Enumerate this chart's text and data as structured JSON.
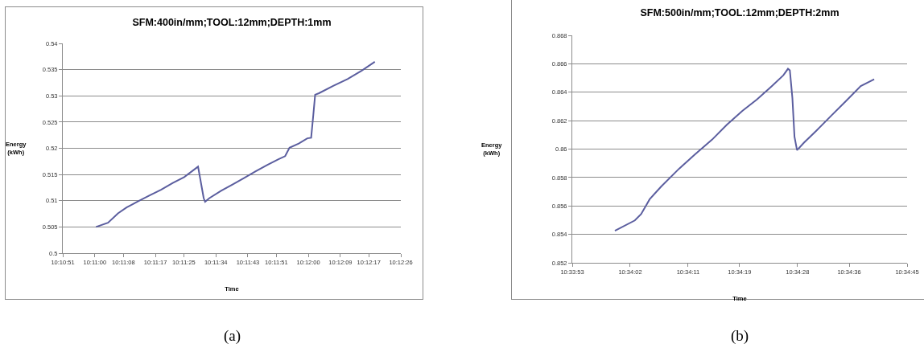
{
  "chart_data": [
    {
      "type": "line",
      "title": "SFM:400in/mm;TOOL:12mm;DEPTH:1mm",
      "xlabel": "Time",
      "ylabel": "Energy\n(kWh)",
      "annotations": [
        "(a)"
      ],
      "x": [
        10.18342,
        10.18436,
        10.18514,
        10.18581,
        10.18672,
        10.18761,
        10.1885,
        10.18942,
        10.19031,
        10.19139,
        10.19183,
        10.19194,
        10.19228,
        10.19319,
        10.19408,
        10.19497,
        10.19589,
        10.19678,
        10.19767,
        10.19819,
        10.19853,
        10.19925,
        10.19992,
        10.20022,
        10.20039,
        10.20053,
        10.20083,
        10.20194,
        10.20306,
        10.20417,
        10.20519
      ],
      "series": [
        {
          "color": "#5b5e9f",
          "values": [
            0.505,
            0.5058,
            0.5076,
            0.5087,
            0.5099,
            0.511,
            0.5121,
            0.5134,
            0.5145,
            0.5165,
            0.5105,
            0.5098,
            0.5105,
            0.5119,
            0.5131,
            0.5143,
            0.5156,
            0.5168,
            0.5179,
            0.5185,
            0.5201,
            0.5209,
            0.5219,
            0.522,
            0.5264,
            0.5302,
            0.5305,
            0.5319,
            0.5332,
            0.5348,
            0.5365
          ]
        }
      ],
      "xlim": [
        10.18083,
        10.20722
      ],
      "ylim": [
        0.5,
        0.54
      ],
      "xticks": [
        {
          "value": 10.18083,
          "label": "10:10:51"
        },
        {
          "value": 10.18333,
          "label": "10:11:00"
        },
        {
          "value": 10.18556,
          "label": "10:11:08"
        },
        {
          "value": 10.18806,
          "label": "10:11:17"
        },
        {
          "value": 10.19028,
          "label": "10:11:25"
        },
        {
          "value": 10.19278,
          "label": "10:11:34"
        },
        {
          "value": 10.19528,
          "label": "10:11:43"
        },
        {
          "value": 10.1975,
          "label": "10:11:51"
        },
        {
          "value": 10.2,
          "label": "10:12:00"
        },
        {
          "value": 10.2025,
          "label": "10:12:09"
        },
        {
          "value": 10.20472,
          "label": "10:12:17"
        },
        {
          "value": 10.20722,
          "label": "10:12:26"
        }
      ],
      "yticks": [
        0.5,
        0.505,
        0.51,
        0.515,
        0.52,
        0.525,
        0.53,
        0.535,
        0.54
      ],
      "grid": "y",
      "marker": "none",
      "line_style": "solid"
    },
    {
      "type": "line",
      "title": "SFM:500in/mm;TOOL:12mm;DEPTH:2mm",
      "xlabel": "Time",
      "ylabel": "Energy\n(kWh)",
      "annotations": [
        "(b)"
      ],
      "x": [
        10.56656,
        10.56742,
        10.56769,
        10.56806,
        10.56856,
        10.56933,
        10.57,
        10.57075,
        10.57139,
        10.57206,
        10.57269,
        10.57333,
        10.57383,
        10.57403,
        10.57411,
        10.57422,
        10.57431,
        10.57442,
        10.57472,
        10.57525,
        10.57589,
        10.57653,
        10.57717,
        10.57775
      ],
      "series": [
        {
          "color": "#5b5e9f",
          "values": [
            0.85426,
            0.85498,
            0.85542,
            0.85647,
            0.85737,
            0.85862,
            0.85961,
            0.86066,
            0.86171,
            0.86269,
            0.86349,
            0.86443,
            0.86519,
            0.86565,
            0.86554,
            0.86359,
            0.86087,
            0.85992,
            0.86045,
            0.86129,
            0.86234,
            0.86338,
            0.86443,
            0.86491
          ]
        }
      ],
      "xlim": [
        10.56472,
        10.57917
      ],
      "ylim": [
        0.852,
        0.868
      ],
      "xticks": [
        {
          "value": 10.56472,
          "label": "10:33:53"
        },
        {
          "value": 10.56722,
          "label": "10:34:02"
        },
        {
          "value": 10.56972,
          "label": "10:34:11"
        },
        {
          "value": 10.57194,
          "label": "10:34:19"
        },
        {
          "value": 10.57444,
          "label": "10:34:28"
        },
        {
          "value": 10.57667,
          "label": "10:34:36"
        },
        {
          "value": 10.57917,
          "label": "10:34:45"
        }
      ],
      "yticks": [
        0.852,
        0.854,
        0.856,
        0.858,
        0.86,
        0.862,
        0.864,
        0.866,
        0.868
      ],
      "grid": "y",
      "marker": "none",
      "line_style": "solid"
    }
  ]
}
